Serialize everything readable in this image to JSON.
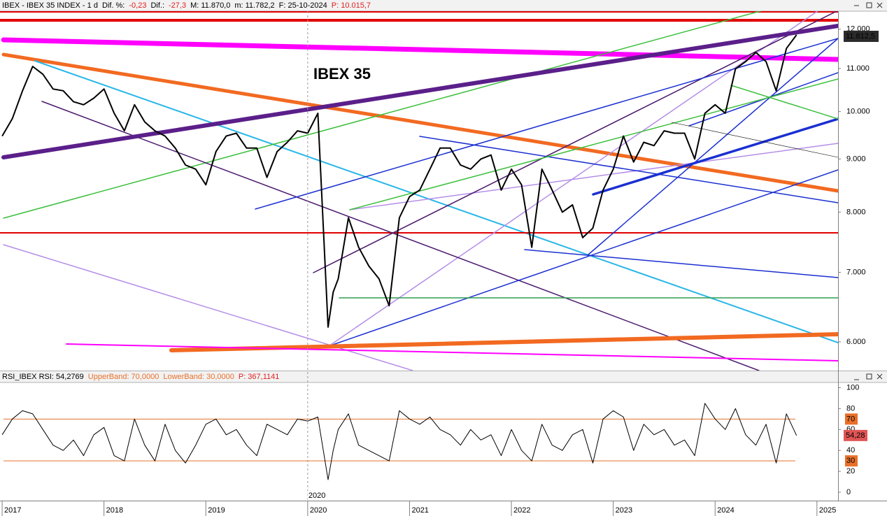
{
  "chart_data": [
    {
      "type": "line",
      "title": "IBEX 35",
      "title_color": "#1a2fd1",
      "log_scale": true,
      "header": [
        {
          "text": "IBEX - IBEX 35 INDEX - 1 d",
          "color": "#000000"
        },
        {
          "text": "Dif. %:",
          "color": "#000000"
        },
        {
          "text": "-0,23",
          "color": "#e02020"
        },
        {
          "text": "Dif.:",
          "color": "#000000"
        },
        {
          "text": "-27,3",
          "color": "#e02020"
        },
        {
          "text": "M: 11.870,0",
          "color": "#000000"
        },
        {
          "text": "m: 11.782,2",
          "color": "#000000"
        },
        {
          "text": "F: 25-10-2024",
          "color": "#000000"
        },
        {
          "text": "P: 10.015,7",
          "color": "#e02020"
        }
      ],
      "x": [
        2017.0,
        2017.1,
        2017.2,
        2017.3,
        2017.4,
        2017.5,
        2017.6,
        2017.7,
        2017.8,
        2017.9,
        2018.0,
        2018.1,
        2018.2,
        2018.3,
        2018.4,
        2018.5,
        2018.6,
        2018.7,
        2018.8,
        2018.9,
        2019.0,
        2019.1,
        2019.2,
        2019.3,
        2019.4,
        2019.5,
        2019.6,
        2019.7,
        2019.8,
        2019.9,
        2020.0,
        2020.1,
        2020.2,
        2020.25,
        2020.3,
        2020.4,
        2020.5,
        2020.6,
        2020.7,
        2020.8,
        2020.9,
        2021.0,
        2021.1,
        2021.2,
        2021.3,
        2021.4,
        2021.5,
        2021.6,
        2021.7,
        2021.8,
        2021.9,
        2022.0,
        2022.1,
        2022.2,
        2022.3,
        2022.4,
        2022.5,
        2022.6,
        2022.7,
        2022.8,
        2022.9,
        2023.0,
        2023.1,
        2023.2,
        2023.3,
        2023.4,
        2023.5,
        2023.6,
        2023.7,
        2023.8,
        2023.9,
        2024.0,
        2024.1,
        2024.2,
        2024.3,
        2024.4,
        2024.5,
        2024.6,
        2024.7,
        2024.8
      ],
      "values": [
        9470,
        9840,
        10470,
        11050,
        10860,
        10510,
        10470,
        10220,
        10150,
        10300,
        10510,
        9960,
        9580,
        10150,
        9770,
        9580,
        9470,
        9220,
        8880,
        8800,
        8500,
        9150,
        9470,
        9530,
        9220,
        9220,
        8640,
        9150,
        9340,
        9580,
        9530,
        9960,
        6200,
        6700,
        6900,
        7900,
        7400,
        7100,
        6900,
        6500,
        7900,
        8280,
        8400,
        8800,
        9220,
        9220,
        8880,
        8800,
        9000,
        9080,
        8400,
        8800,
        8500,
        7400,
        8800,
        8400,
        8000,
        8130,
        7560,
        7720,
        8400,
        8800,
        9470,
        8940,
        9340,
        9270,
        9580,
        9530,
        9530,
        9000,
        9960,
        10150,
        9960,
        10990,
        11170,
        11400,
        11170,
        10470,
        11500,
        11850
      ],
      "color": "#000000",
      "xlim": [
        2016.979,
        2025.207
      ],
      "ylim": [
        5630,
        12490
      ],
      "yticks": [
        {
          "value": 6000,
          "label": "6.000"
        },
        {
          "value": 7000,
          "label": "7.000"
        },
        {
          "value": 8000,
          "label": "8.000"
        },
        {
          "value": 9000,
          "label": "9.000"
        },
        {
          "value": 10000,
          "label": "10.000"
        },
        {
          "value": 11000,
          "label": "11.000"
        },
        {
          "value": 12000,
          "label": "12.000"
        }
      ],
      "last_value": {
        "value": 11812.5,
        "label": "11.812,5"
      }
    },
    {
      "type": "line",
      "header": [
        {
          "text": "RSI_IBEX RSI: 54,2769",
          "color": "#000000"
        },
        {
          "text": "UpperBand: 70,0000",
          "color": "#e8702a"
        },
        {
          "text": "LowerBand: 30,0000",
          "color": "#e8702a"
        },
        {
          "text": "P: 367,1141",
          "color": "#e02020"
        }
      ],
      "x": [
        2017.0,
        2017.1,
        2017.2,
        2017.3,
        2017.4,
        2017.5,
        2017.6,
        2017.7,
        2017.8,
        2017.9,
        2018.0,
        2018.1,
        2018.2,
        2018.3,
        2018.4,
        2018.5,
        2018.6,
        2018.7,
        2018.8,
        2018.9,
        2019.0,
        2019.1,
        2019.2,
        2019.3,
        2019.4,
        2019.5,
        2019.6,
        2019.7,
        2019.8,
        2019.9,
        2020.0,
        2020.1,
        2020.2,
        2020.25,
        2020.3,
        2020.4,
        2020.5,
        2020.6,
        2020.7,
        2020.8,
        2020.9,
        2021.0,
        2021.1,
        2021.2,
        2021.3,
        2021.4,
        2021.5,
        2021.6,
        2021.7,
        2021.8,
        2021.9,
        2022.0,
        2022.1,
        2022.2,
        2022.3,
        2022.4,
        2022.5,
        2022.6,
        2022.7,
        2022.8,
        2022.9,
        2023.0,
        2023.1,
        2023.2,
        2023.3,
        2023.4,
        2023.5,
        2023.6,
        2023.7,
        2023.8,
        2023.9,
        2024.0,
        2024.1,
        2024.2,
        2024.3,
        2024.4,
        2024.5,
        2024.6,
        2024.7,
        2024.8
      ],
      "values": [
        55,
        70,
        78,
        75,
        60,
        45,
        40,
        50,
        35,
        55,
        62,
        35,
        30,
        70,
        45,
        30,
        65,
        40,
        28,
        45,
        65,
        70,
        55,
        60,
        45,
        35,
        65,
        60,
        55,
        70,
        68,
        72,
        12,
        40,
        60,
        75,
        45,
        40,
        35,
        30,
        78,
        70,
        65,
        72,
        60,
        55,
        45,
        60,
        50,
        55,
        35,
        60,
        40,
        30,
        65,
        45,
        40,
        55,
        60,
        28,
        70,
        78,
        72,
        40,
        65,
        55,
        60,
        45,
        50,
        35,
        85,
        70,
        60,
        80,
        55,
        45,
        65,
        28,
        75,
        54.28
      ],
      "color": "#000000",
      "band_color": "#e8702a",
      "bands": [
        70,
        30
      ],
      "last_value": {
        "value": 54.28,
        "label": "54,28"
      },
      "xlim": [
        2016.979,
        2025.207
      ],
      "xticks": [
        2017,
        2018,
        2019,
        2020,
        2021,
        2022,
        2023,
        2024,
        2025
      ],
      "cursor": 2020,
      "ylim": [
        -8,
        105
      ],
      "yticks": [
        0,
        20,
        40,
        60,
        80,
        100
      ]
    }
  ]
}
